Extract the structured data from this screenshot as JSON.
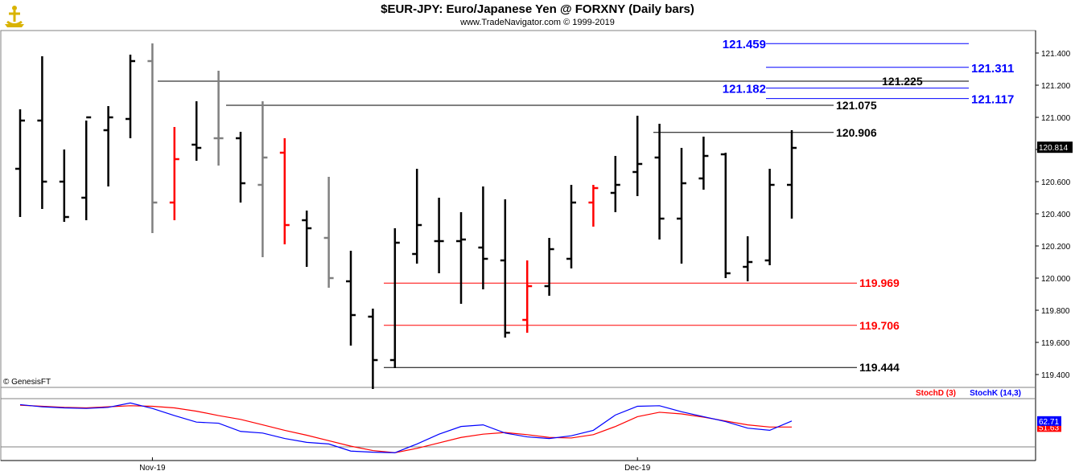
{
  "header": {
    "title": "$EUR-JPY:  Euro/Japanese Yen @ FORXNY  (Daily bars)",
    "subtitle": "www.TradeNavigator.com © 1999-2019",
    "watermark": "© GenesisFT"
  },
  "chart_data": [
    {
      "type": "ohlc",
      "ylim": [
        119.3,
        121.55
      ],
      "y_ticks": [
        "121.400",
        "121.200",
        "121.000",
        "120.800",
        "120.600",
        "120.400",
        "120.200",
        "120.000",
        "119.800",
        "119.600",
        "119.400"
      ],
      "last_price_label": "120.814",
      "x_labels": [
        {
          "label": "Nov-19",
          "at_bar": 6
        },
        {
          "label": "Dec-19",
          "at_bar": 28
        }
      ],
      "bars": [
        {
          "o": 120.68,
          "h": 121.05,
          "l": 120.38,
          "c": 120.98,
          "color": "black"
        },
        {
          "o": 120.98,
          "h": 121.38,
          "l": 120.43,
          "c": 120.6,
          "color": "black"
        },
        {
          "o": 120.6,
          "h": 120.8,
          "l": 120.35,
          "c": 120.38,
          "color": "black"
        },
        {
          "o": 120.5,
          "h": 120.98,
          "l": 120.36,
          "c": 121.0,
          "color": "black"
        },
        {
          "o": 120.92,
          "h": 121.07,
          "l": 120.57,
          "c": 121.0,
          "color": "black"
        },
        {
          "o": 120.99,
          "h": 121.39,
          "l": 120.87,
          "c": 121.35,
          "color": "black"
        },
        {
          "o": 121.35,
          "h": 121.46,
          "l": 120.28,
          "c": 120.47,
          "color": "gray"
        },
        {
          "o": 120.47,
          "h": 120.94,
          "l": 120.36,
          "c": 120.74,
          "color": "red"
        },
        {
          "o": 120.83,
          "h": 121.1,
          "l": 120.73,
          "c": 120.81,
          "color": "black"
        },
        {
          "o": 120.87,
          "h": 121.29,
          "l": 120.7,
          "c": 120.87,
          "color": "gray"
        },
        {
          "o": 120.87,
          "h": 120.91,
          "l": 120.47,
          "c": 120.59,
          "color": "black"
        },
        {
          "o": 120.58,
          "h": 121.1,
          "l": 120.13,
          "c": 120.75,
          "color": "gray"
        },
        {
          "o": 120.78,
          "h": 120.87,
          "l": 120.21,
          "c": 120.33,
          "color": "red"
        },
        {
          "o": 120.36,
          "h": 120.42,
          "l": 120.07,
          "c": 120.31,
          "color": "black"
        },
        {
          "o": 120.25,
          "h": 120.63,
          "l": 119.94,
          "c": 120.0,
          "color": "gray"
        },
        {
          "o": 119.98,
          "h": 120.17,
          "l": 119.58,
          "c": 119.77,
          "color": "black"
        },
        {
          "o": 119.76,
          "h": 119.81,
          "l": 119.31,
          "c": 119.49,
          "color": "black"
        },
        {
          "o": 119.49,
          "h": 120.31,
          "l": 119.44,
          "c": 120.22,
          "color": "black"
        },
        {
          "o": 120.15,
          "h": 120.68,
          "l": 120.09,
          "c": 120.33,
          "color": "black"
        },
        {
          "o": 120.23,
          "h": 120.5,
          "l": 120.03,
          "c": 120.23,
          "color": "black"
        },
        {
          "o": 120.23,
          "h": 120.41,
          "l": 119.84,
          "c": 120.24,
          "color": "black"
        },
        {
          "o": 120.19,
          "h": 120.57,
          "l": 119.93,
          "c": 120.12,
          "color": "black"
        },
        {
          "o": 120.11,
          "h": 120.49,
          "l": 119.63,
          "c": 119.66,
          "color": "black"
        },
        {
          "o": 119.74,
          "h": 120.11,
          "l": 119.66,
          "c": 119.95,
          "color": "red"
        },
        {
          "o": 119.95,
          "h": 120.25,
          "l": 119.89,
          "c": 120.18,
          "color": "black"
        },
        {
          "o": 120.12,
          "h": 120.58,
          "l": 120.06,
          "c": 120.47,
          "color": "black"
        },
        {
          "o": 120.47,
          "h": 120.58,
          "l": 120.32,
          "c": 120.56,
          "color": "red"
        },
        {
          "o": 120.53,
          "h": 120.76,
          "l": 120.41,
          "c": 120.58,
          "color": "black"
        },
        {
          "o": 120.66,
          "h": 121.01,
          "l": 120.51,
          "c": 120.71,
          "color": "black"
        },
        {
          "o": 120.75,
          "h": 120.96,
          "l": 120.24,
          "c": 120.37,
          "color": "black"
        },
        {
          "o": 120.37,
          "h": 120.81,
          "l": 120.09,
          "c": 120.59,
          "color": "black"
        },
        {
          "o": 120.62,
          "h": 120.88,
          "l": 120.55,
          "c": 120.76,
          "color": "black"
        },
        {
          "o": 120.77,
          "h": 120.78,
          "l": 120.0,
          "c": 120.03,
          "color": "black"
        },
        {
          "o": 120.07,
          "h": 120.26,
          "l": 119.98,
          "c": 120.1,
          "color": "black"
        },
        {
          "o": 120.11,
          "h": 120.68,
          "l": 120.08,
          "c": 120.58,
          "color": "black"
        },
        {
          "o": 120.58,
          "h": 120.92,
          "l": 120.37,
          "c": 120.81,
          "color": "black"
        }
      ],
      "levels": [
        {
          "value": 121.459,
          "label": "121.459",
          "color": "#0000ff",
          "label_side": "left"
        },
        {
          "value": 121.311,
          "label": "121.311",
          "color": "#0000ff",
          "label_side": "right"
        },
        {
          "value": 121.225,
          "label": "121.225",
          "color": "#000000",
          "label_side": "right"
        },
        {
          "value": 121.182,
          "label": "121.182",
          "color": "#0000ff",
          "label_side": "left"
        },
        {
          "value": 121.117,
          "label": "121.117",
          "color": "#0000ff",
          "label_side": "right"
        },
        {
          "value": 121.075,
          "label": "121.075",
          "color": "#000000",
          "label_side": "right"
        },
        {
          "value": 120.906,
          "label": "120.906",
          "color": "#000000",
          "label_side": "right"
        },
        {
          "value": 119.969,
          "label": "119.969",
          "color": "#ff0000",
          "label_side": "right"
        },
        {
          "value": 119.706,
          "label": "119.706",
          "color": "#ff0000",
          "label_side": "right"
        },
        {
          "value": 119.444,
          "label": "119.444",
          "color": "#000000",
          "label_side": "right"
        }
      ]
    },
    {
      "type": "line",
      "ylim": [
        0,
        100
      ],
      "series": [
        {
          "name": "StochD (3)",
          "color": "#ff0000",
          "last_label": "51.63",
          "values": [
            91,
            89,
            87,
            86,
            88,
            90,
            89,
            86,
            80,
            72,
            65,
            55,
            45,
            36,
            26,
            16,
            8,
            4,
            12,
            22,
            32,
            38,
            41,
            37,
            32,
            31,
            37,
            52,
            70,
            78,
            75,
            69,
            62,
            55,
            51,
            51
          ]
        },
        {
          "name": "StochK (14,3)",
          "color": "#0000ff",
          "last_label": "62.71",
          "values": [
            92,
            88,
            86,
            85,
            87,
            95,
            85,
            72,
            60,
            58,
            43,
            40,
            30,
            23,
            20,
            7,
            5,
            4,
            20,
            38,
            52,
            55,
            40,
            33,
            30,
            35,
            45,
            73,
            89,
            90,
            79,
            70,
            61,
            49,
            45,
            62
          ]
        }
      ]
    }
  ]
}
